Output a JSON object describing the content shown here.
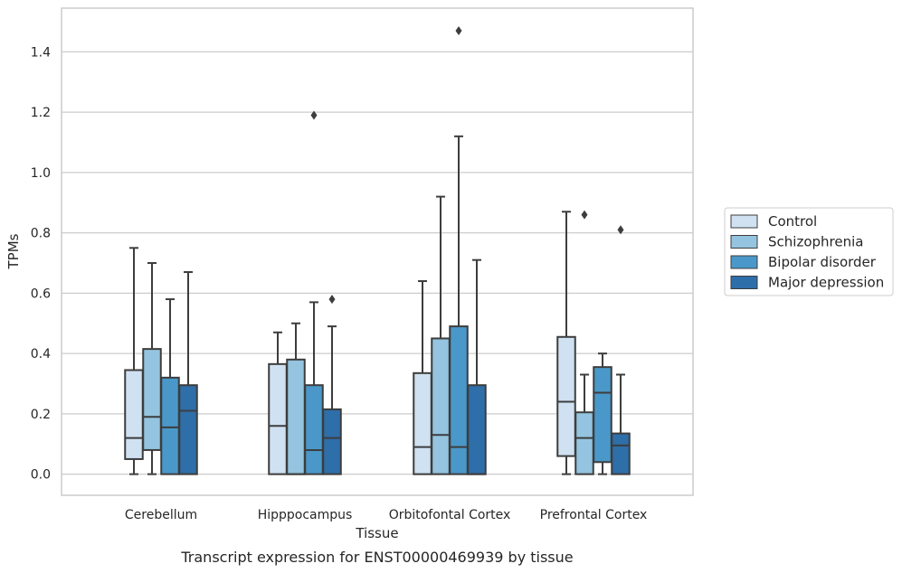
{
  "chart_data": {
    "type": "boxplot",
    "caption": "Transcript expression for ENST00000469939 by tissue",
    "xlabel": "Tissue",
    "ylabel": "TPMs",
    "ylim": [
      -0.07,
      1.545
    ],
    "yticks": [
      0.0,
      0.2,
      0.4,
      0.6,
      0.8,
      1.0,
      1.2,
      1.4
    ],
    "ytick_labels": [
      "0.0",
      "0.2",
      "0.4",
      "0.6",
      "0.8",
      "1.0",
      "1.2",
      "1.4"
    ],
    "grid": "horizontal",
    "legend_position": "right",
    "categories": [
      "Cerebellum",
      "Hipppocampus",
      "Orbitofontal Cortex",
      "Prefrontal Cortex"
    ],
    "series": [
      {
        "name": "Control",
        "color": "#d0e1f2",
        "boxes": [
          {
            "min": 0.0,
            "q1": 0.05,
            "median": 0.12,
            "q3": 0.345,
            "max": 0.75,
            "outliers": []
          },
          {
            "min": 0.0,
            "q1": 0.0,
            "median": 0.16,
            "q3": 0.365,
            "max": 0.47,
            "outliers": []
          },
          {
            "min": 0.0,
            "q1": 0.0,
            "median": 0.09,
            "q3": 0.335,
            "max": 0.64,
            "outliers": []
          },
          {
            "min": 0.0,
            "q1": 0.06,
            "median": 0.24,
            "q3": 0.455,
            "max": 0.87,
            "outliers": []
          }
        ]
      },
      {
        "name": "Schizophrenia",
        "color": "#94c4df",
        "boxes": [
          {
            "min": 0.0,
            "q1": 0.08,
            "median": 0.19,
            "q3": 0.415,
            "max": 0.7,
            "outliers": []
          },
          {
            "min": 0.0,
            "q1": 0.0,
            "median": 0.0,
            "q3": 0.38,
            "max": 0.5,
            "outliers": []
          },
          {
            "min": 0.0,
            "q1": 0.0,
            "median": 0.13,
            "q3": 0.45,
            "max": 0.92,
            "outliers": []
          },
          {
            "min": 0.0,
            "q1": 0.0,
            "median": 0.12,
            "q3": 0.205,
            "max": 0.33,
            "outliers": [
              0.86
            ]
          }
        ]
      },
      {
        "name": "Bipolar disorder",
        "color": "#4a98c9",
        "boxes": [
          {
            "min": 0.0,
            "q1": 0.0,
            "median": 0.155,
            "q3": 0.32,
            "max": 0.58,
            "outliers": []
          },
          {
            "min": 0.0,
            "q1": 0.0,
            "median": 0.08,
            "q3": 0.295,
            "max": 0.57,
            "outliers": [
              1.19
            ]
          },
          {
            "min": 0.0,
            "q1": 0.0,
            "median": 0.09,
            "q3": 0.49,
            "max": 1.12,
            "outliers": [
              1.47
            ]
          },
          {
            "min": 0.0,
            "q1": 0.04,
            "median": 0.27,
            "q3": 0.355,
            "max": 0.4,
            "outliers": []
          }
        ]
      },
      {
        "name": "Major depression",
        "color": "#2e6ea9",
        "boxes": [
          {
            "min": 0.0,
            "q1": 0.0,
            "median": 0.21,
            "q3": 0.295,
            "max": 0.67,
            "outliers": []
          },
          {
            "min": 0.0,
            "q1": 0.0,
            "median": 0.12,
            "q3": 0.215,
            "max": 0.49,
            "outliers": [
              0.58
            ]
          },
          {
            "min": 0.0,
            "q1": 0.0,
            "median": 0.0,
            "q3": 0.295,
            "max": 0.71,
            "outliers": []
          },
          {
            "min": 0.0,
            "q1": 0.0,
            "median": 0.095,
            "q3": 0.135,
            "max": 0.33,
            "outliers": [
              0.81
            ]
          }
        ]
      }
    ]
  }
}
